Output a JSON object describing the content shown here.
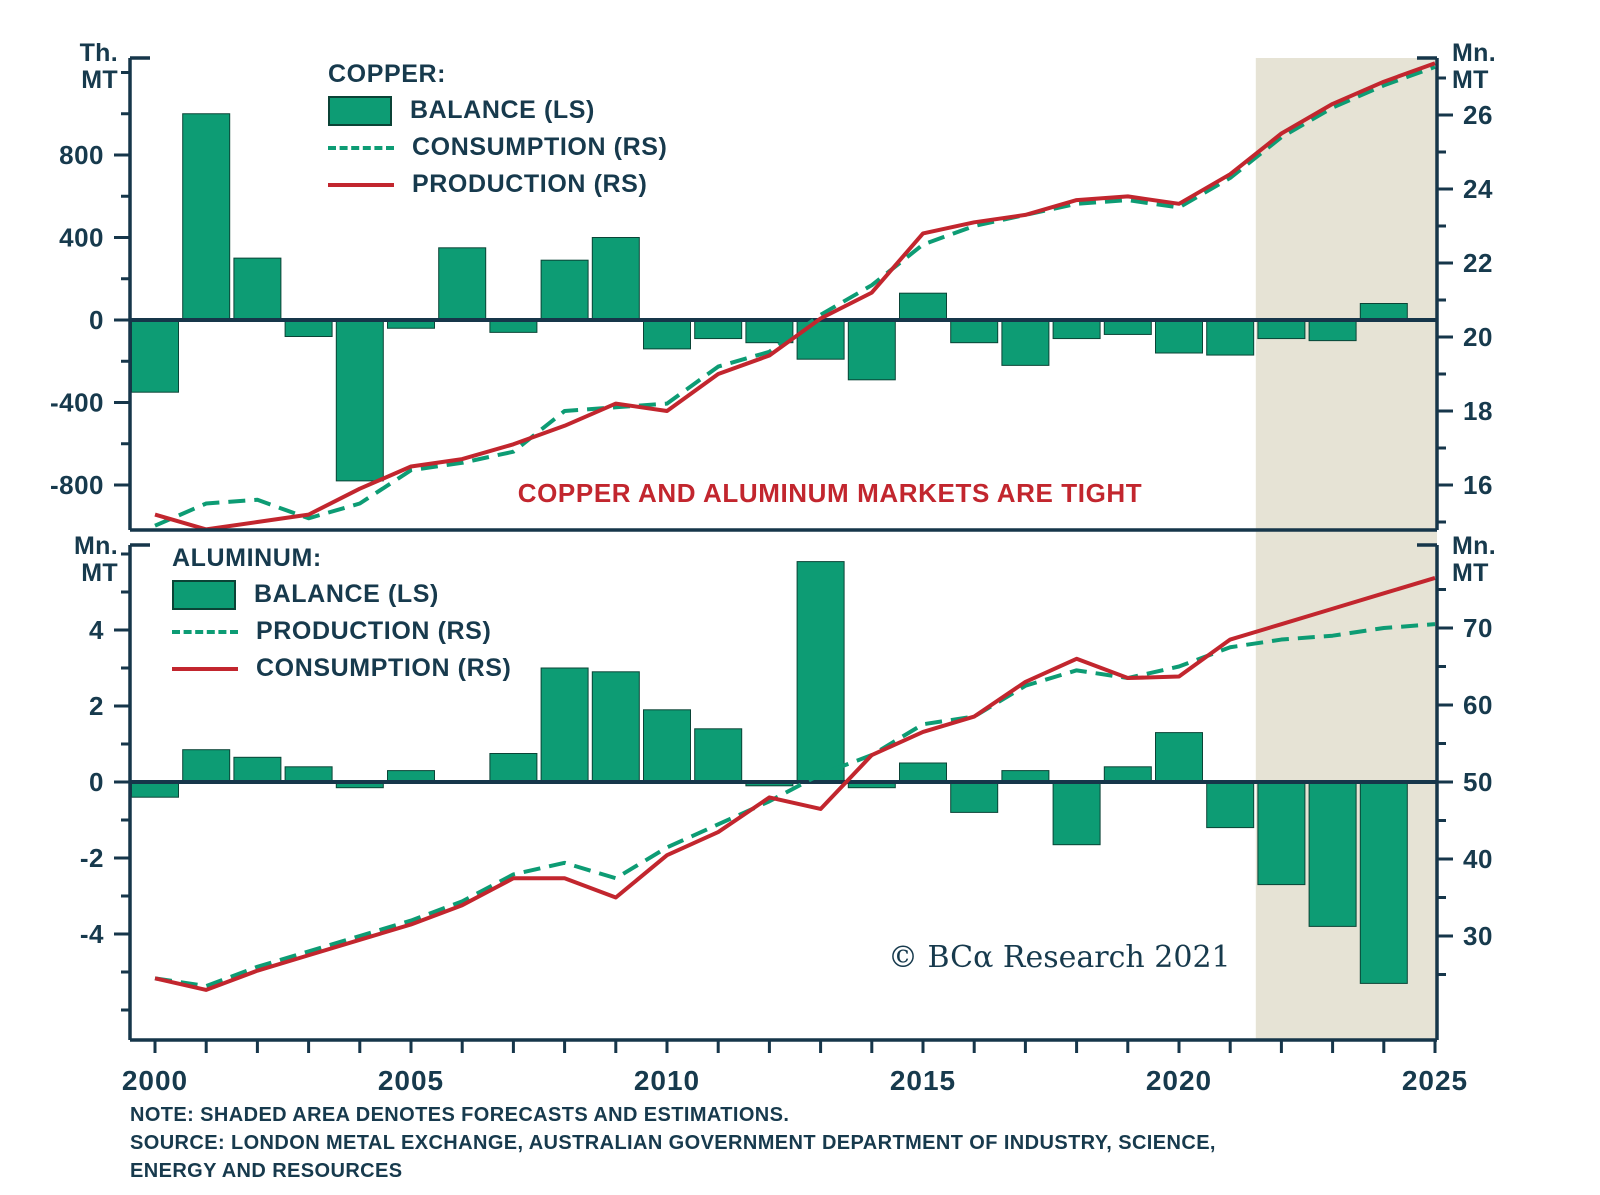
{
  "title": "COPPER AND ALUMINUM MARKETS ARE TIGHT",
  "watermark": "© BCα Research 2021",
  "notes": [
    "NOTE: SHADED AREA DENOTES FORECASTS AND ESTIMATIONS.",
    "SOURCE: LONDON METAL EXCHANGE, AUSTRALIAN GOVERNMENT DEPARTMENT OF INDUSTRY, SCIENCE,",
    "ENERGY AND RESOURCES"
  ],
  "colors": {
    "green": "#0d9c74",
    "red": "#c2262e",
    "navy": "#173a4d",
    "axis": "#16364a",
    "bar_edge": "#0a4436",
    "shade": "#e6e3d5"
  },
  "x_axis_ticks": [
    2000,
    2005,
    2010,
    2015,
    2020,
    2025
  ],
  "forecast_start_year": 2021.5,
  "chart_data": {
    "copper": {
      "type": "bar+line",
      "legend_title": "COPPER:",
      "left_axis_unit": "Th.\nMT",
      "right_axis_unit": "Mn.\nMT",
      "left_ticks": [
        800,
        400,
        0,
        -400,
        -800
      ],
      "right_ticks": [
        26,
        24,
        22,
        20,
        18,
        16
      ],
      "start_year": 2000,
      "balance": {
        "label": "BALANCE (LS)",
        "unit": "Th. MT",
        "values": [
          -350,
          1000,
          300,
          -80,
          -780,
          -40,
          350,
          -60,
          290,
          400,
          -140,
          -90,
          -110,
          -190,
          -290,
          130,
          -110,
          -220,
          -90,
          -70,
          -160,
          -170,
          -90,
          -100,
          80
        ]
      },
      "consumption": {
        "label": "CONSUMPTION (RS)",
        "unit": "Mn. MT",
        "values": [
          14.9,
          15.5,
          15.6,
          15.1,
          15.5,
          16.4,
          16.6,
          16.9,
          18.0,
          18.1,
          18.2,
          19.2,
          19.6,
          20.6,
          21.4,
          22.5,
          23.0,
          23.3,
          23.6,
          23.7,
          23.5,
          24.3,
          25.4,
          26.2,
          26.8,
          27.3
        ]
      },
      "production": {
        "label": "PRODUCTION (RS)",
        "unit": "Mn. MT",
        "values": [
          15.2,
          14.8,
          15.0,
          15.2,
          15.9,
          16.5,
          16.7,
          17.1,
          17.6,
          18.2,
          18.0,
          19.0,
          19.5,
          20.5,
          21.2,
          22.8,
          23.1,
          23.3,
          23.7,
          23.8,
          23.6,
          24.4,
          25.5,
          26.3,
          26.9,
          27.4
        ]
      }
    },
    "aluminum": {
      "type": "bar+line",
      "legend_title": "ALUMINUM:",
      "left_axis_unit": "Mn.\nMT",
      "right_axis_unit": "Mn.\nMT",
      "left_ticks": [
        4,
        2,
        0,
        -2,
        -4
      ],
      "right_ticks": [
        70,
        60,
        50,
        40,
        30
      ],
      "start_year": 2000,
      "balance": {
        "label": "BALANCE (LS)",
        "unit": "Mn. MT",
        "values": [
          -0.4,
          0.85,
          0.65,
          0.4,
          -0.15,
          0.3,
          0,
          0.75,
          3.0,
          2.9,
          1.9,
          1.4,
          -0.1,
          5.8,
          -0.15,
          0.5,
          -0.8,
          0.3,
          -1.65,
          0.4,
          1.3,
          -1.2,
          -2.7,
          -3.8,
          -5.3
        ]
      },
      "production": {
        "label": "PRODUCTION (RS)",
        "unit": "Mn. MT",
        "values": [
          24.5,
          23.5,
          26,
          28,
          30,
          32,
          34.5,
          38,
          39.5,
          37.5,
          41.5,
          44.5,
          47.5,
          51,
          53.5,
          57.5,
          58.5,
          62.5,
          64.5,
          63.5,
          65,
          67.5,
          68.5,
          69,
          70,
          70.5
        ]
      },
      "consumption": {
        "label": "CONSUMPTION (RS)",
        "unit": "Mn. MT",
        "values": [
          24.5,
          23,
          25.5,
          27.5,
          29.5,
          31.5,
          34,
          37.5,
          37.5,
          35,
          40.5,
          43.5,
          48,
          46.5,
          53.5,
          56.5,
          58.5,
          63,
          66,
          63.5,
          63.7,
          68.5,
          70.5,
          72.5,
          74.5,
          76.5
        ]
      }
    }
  }
}
